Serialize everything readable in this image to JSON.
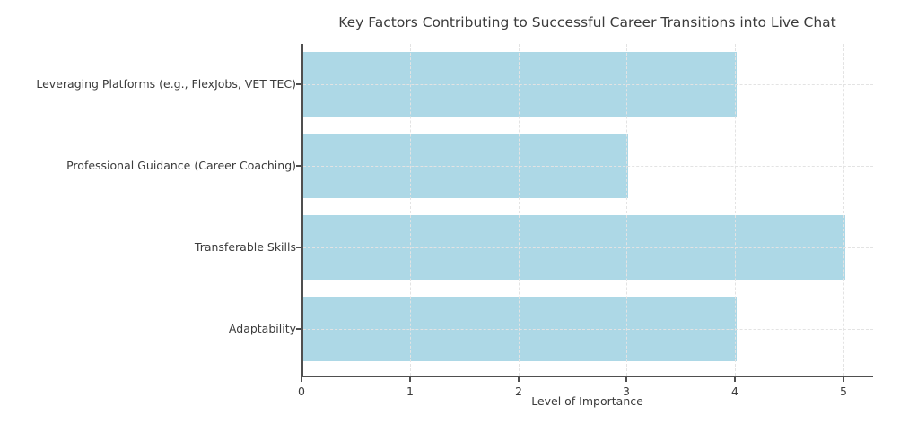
{
  "figure": {
    "background": "#ffffff"
  },
  "chart_data": {
    "type": "bar",
    "orientation": "horizontal",
    "title": "Key Factors Contributing to Successful Career Transitions into Live Chat",
    "categories": [
      "Leveraging Platforms (e.g., FlexJobs, VET TEC)",
      "Professional Guidance (Career Coaching)",
      "Transferable Skills",
      "Adaptability"
    ],
    "values": [
      4,
      3,
      5,
      4
    ],
    "xlabel": "Level of Importance",
    "ylabel": "",
    "x_ticks": [
      0,
      1,
      2,
      3,
      4,
      5
    ],
    "xlim": [
      0,
      5.25
    ],
    "grid": {
      "style": "dashed",
      "axes": "both",
      "above_bars": true
    },
    "legend": "none",
    "colors": {
      "bar": "#ADD8E6",
      "grid": "#e3e3e3",
      "spine": "#4f4f4f",
      "text": "#3b3b3b",
      "background": "#ffffff"
    }
  }
}
